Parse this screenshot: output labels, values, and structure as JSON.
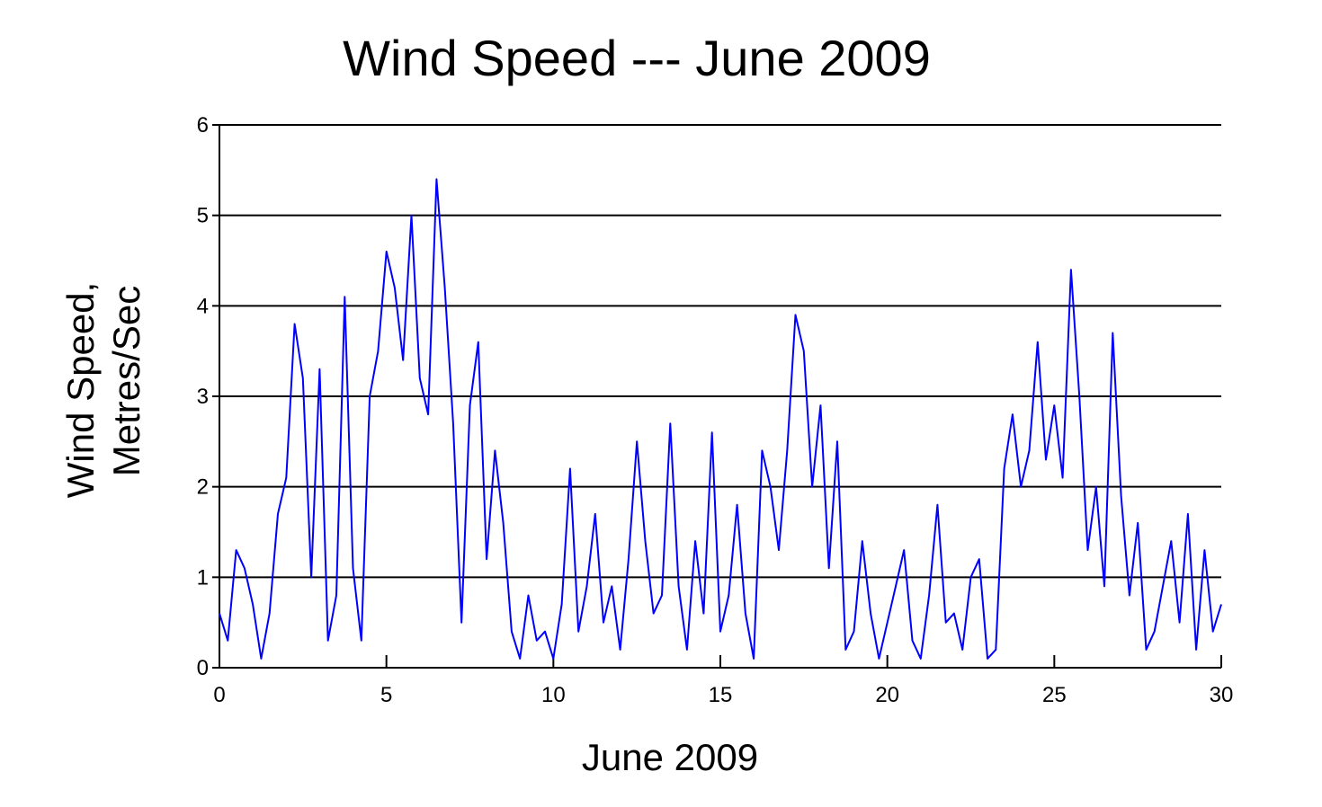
{
  "chart_data": {
    "type": "line",
    "title": "Wind Speed --- June 2009",
    "xlabel": "June 2009",
    "ylabel_lines": [
      "Wind Speed,",
      "Metres/Sec"
    ],
    "xlim": [
      0,
      30
    ],
    "ylim": [
      0,
      6
    ],
    "xticks": [
      0,
      5,
      10,
      15,
      20,
      25,
      30
    ],
    "yticks": [
      0,
      1,
      2,
      3,
      4,
      5,
      6
    ],
    "grid": "horizontal",
    "line_color": "#0000ff",
    "series": [
      {
        "x": [
          0.0,
          0.25,
          0.5,
          0.75,
          1.0,
          1.25,
          1.5,
          1.75,
          2.0,
          2.25,
          2.5,
          2.75,
          3.0,
          3.25,
          3.5,
          3.75,
          4.0,
          4.25,
          4.5,
          4.75,
          5.0,
          5.25,
          5.5,
          5.75,
          6.0,
          6.25,
          6.5,
          6.75,
          7.0,
          7.25,
          7.5,
          7.75,
          8.0,
          8.25,
          8.5,
          8.75,
          9.0,
          9.25,
          9.5,
          9.75,
          10.0,
          10.25,
          10.5,
          10.75,
          11.0,
          11.25,
          11.5,
          11.75,
          12.0,
          12.25,
          12.5,
          12.75,
          13.0,
          13.25,
          13.5,
          13.75,
          14.0,
          14.25,
          14.5,
          14.75,
          15.0,
          15.25,
          15.5,
          15.75,
          16.0,
          16.25,
          16.5,
          16.75,
          17.0,
          17.25,
          17.5,
          17.75,
          18.0,
          18.25,
          18.5,
          18.75,
          19.0,
          19.25,
          19.5,
          19.75,
          20.0,
          20.25,
          20.5,
          20.75,
          21.0,
          21.25,
          21.5,
          21.75,
          22.0,
          22.25,
          22.5,
          22.75,
          23.0,
          23.25,
          23.5,
          23.75,
          24.0,
          24.25,
          24.5,
          24.75,
          25.0,
          25.25,
          25.5,
          25.75,
          26.0,
          26.25,
          26.5,
          26.75,
          27.0,
          27.25,
          27.5,
          27.75,
          28.0,
          28.25,
          28.5,
          28.75,
          29.0,
          29.25,
          29.5,
          29.75,
          30.0
        ],
        "values": [
          0.6,
          0.3,
          1.3,
          1.1,
          0.7,
          0.1,
          0.6,
          1.7,
          2.1,
          3.8,
          3.2,
          1.0,
          3.3,
          0.3,
          0.8,
          4.1,
          1.1,
          0.3,
          3.0,
          3.5,
          4.6,
          4.2,
          3.4,
          5.0,
          3.2,
          2.8,
          5.4,
          4.2,
          2.7,
          0.5,
          2.9,
          3.6,
          1.2,
          2.4,
          1.6,
          0.4,
          0.1,
          0.8,
          0.3,
          0.4,
          0.1,
          0.7,
          2.2,
          0.4,
          0.9,
          1.7,
          0.5,
          0.9,
          0.2,
          1.2,
          2.5,
          1.4,
          0.6,
          0.8,
          2.7,
          0.9,
          0.2,
          1.4,
          0.6,
          2.6,
          0.4,
          0.8,
          1.8,
          0.6,
          0.1,
          2.4,
          2.0,
          1.3,
          2.4,
          3.9,
          3.5,
          2.0,
          2.9,
          1.1,
          2.5,
          0.2,
          0.4,
          1.4,
          0.6,
          0.1,
          0.5,
          0.9,
          1.3,
          0.3,
          0.1,
          0.8,
          1.8,
          0.5,
          0.6,
          0.2,
          1.0,
          1.2,
          0.1,
          0.2,
          2.2,
          2.8,
          2.0,
          2.4,
          3.6,
          2.3,
          2.9,
          2.1,
          4.4,
          3.0,
          1.3,
          2.0,
          0.9,
          3.7,
          1.9,
          0.8,
          1.6,
          0.2,
          0.4,
          0.9,
          1.4,
          0.5,
          1.7,
          0.2,
          1.3,
          0.4,
          0.7
        ]
      }
    ]
  }
}
